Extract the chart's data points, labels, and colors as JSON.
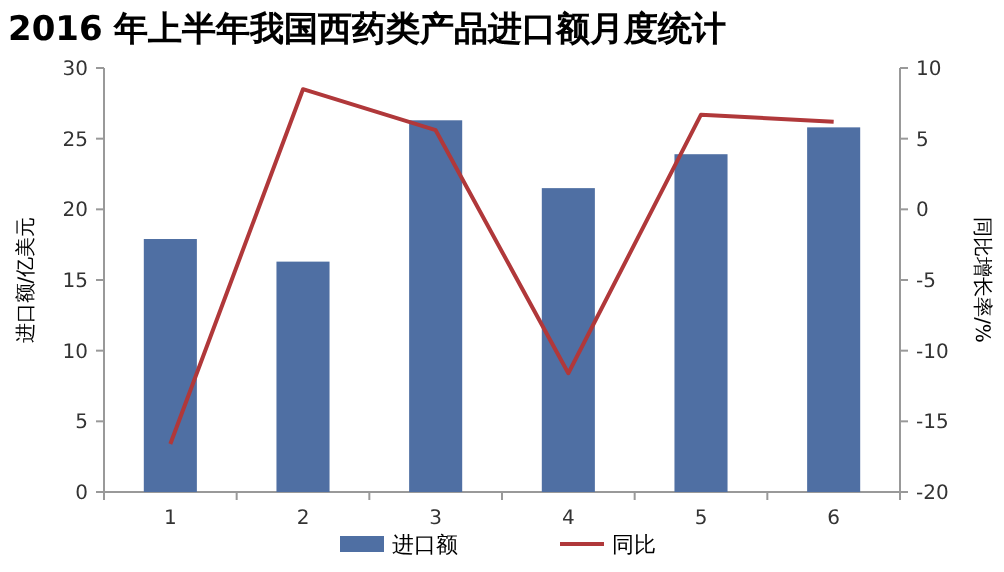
{
  "chart_data": {
    "type": "bar",
    "title": "2016 年上半年我国西药类产品进口额月度统计",
    "categories": [
      "1",
      "2",
      "3",
      "4",
      "5",
      "6"
    ],
    "ylabel": "进口额/亿美元",
    "y2label": "同比增长率/%",
    "ylim": [
      0,
      30
    ],
    "yticks": [
      0,
      5,
      10,
      15,
      20,
      25,
      30
    ],
    "y2lim": [
      -20,
      10
    ],
    "y2ticks": [
      -20,
      -15,
      -10,
      -5,
      0,
      5,
      10
    ],
    "legend": "bottom",
    "grid": false,
    "series": [
      {
        "name": "进口额",
        "color": "#4f6fa3",
        "values": [
          17.9,
          16.3,
          26.3,
          21.5,
          23.9,
          25.8
        ]
      },
      {
        "name": "同比",
        "type": "line",
        "axis": "y2",
        "color": "#b0383a",
        "values": [
          -16.6,
          8.5,
          5.6,
          -11.6,
          6.7,
          6.2
        ]
      }
    ]
  }
}
